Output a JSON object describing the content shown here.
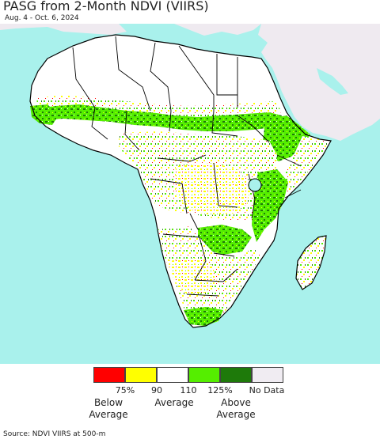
{
  "title": "PASG from 2-Month NDVI (VIIRS)",
  "subtitle": "Aug. 4 - Oct. 6, 2024",
  "legend": {
    "swatches": [
      {
        "name": "below-75",
        "color": "#ff0000"
      },
      {
        "name": "75-90",
        "color": "#ffff00"
      },
      {
        "name": "90-110",
        "color": "#ffffff"
      },
      {
        "name": "110-125",
        "color": "#55ee00"
      },
      {
        "name": "above-125",
        "color": "#1e7a0a"
      },
      {
        "name": "no-data",
        "color": "#f0ecf2"
      }
    ],
    "ticks": [
      "75%",
      "90",
      "110",
      "125%",
      "No Data"
    ],
    "below_average": "Below Average",
    "average": "Average",
    "above_average": "Above Average"
  },
  "source": "Source: NDVI VIIRS at 500-m",
  "colors": {
    "ocean": "#a9f1ec",
    "land_nodata": "#efeaf0",
    "land_normal": "#ffffff",
    "country_border": "#000000",
    "admin_border": "#777777",
    "green_light": "#55ee00",
    "green_dark": "#1e7a0a",
    "yellow": "#ffff00",
    "red": "#ff0000"
  }
}
